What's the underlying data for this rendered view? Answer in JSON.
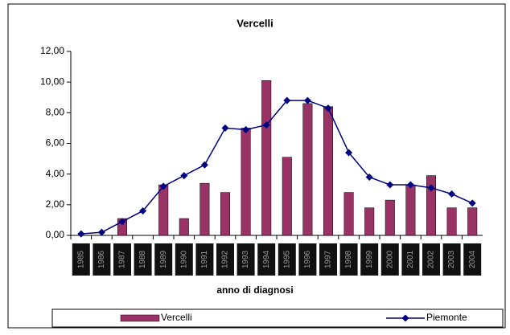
{
  "chart_data": {
    "type": "bar-line",
    "title": "Vercelli",
    "x_label": "anno di diagnosi",
    "categories": [
      "1985",
      "1986",
      "1987",
      "1988",
      "1989",
      "1990",
      "1991",
      "1992",
      "1993",
      "1994",
      "1995",
      "1996",
      "1997",
      "1998",
      "1999",
      "2000",
      "2001",
      "2002",
      "2003",
      "2004"
    ],
    "series": [
      {
        "name": "Vercelli",
        "type": "bar",
        "color": "#993366",
        "values": [
          0,
          0,
          1.1,
          0,
          3.3,
          1.1,
          3.4,
          2.8,
          7.0,
          10.1,
          5.1,
          8.6,
          8.4,
          2.8,
          1.8,
          2.3,
          3.3,
          3.9,
          1.8,
          1.8
        ]
      },
      {
        "name": "Piemonte",
        "type": "line",
        "color": "#000080",
        "values": [
          0.1,
          0.2,
          0.9,
          1.6,
          3.2,
          3.9,
          4.6,
          7.0,
          6.9,
          7.2,
          8.8,
          8.8,
          8.3,
          5.4,
          3.8,
          3.3,
          3.3,
          3.1,
          2.7,
          2.1
        ]
      }
    ],
    "ylim": [
      0,
      12
    ],
    "yticks": [
      {
        "value": 0,
        "label": "0,00"
      },
      {
        "value": 2,
        "label": "2,00"
      },
      {
        "value": 4,
        "label": "4,00"
      },
      {
        "value": 6,
        "label": "6,00"
      },
      {
        "value": 8,
        "label": "8,00"
      },
      {
        "value": 10,
        "label": "10,00"
      },
      {
        "value": 12,
        "label": "12,00"
      }
    ],
    "legend": "bottom"
  }
}
